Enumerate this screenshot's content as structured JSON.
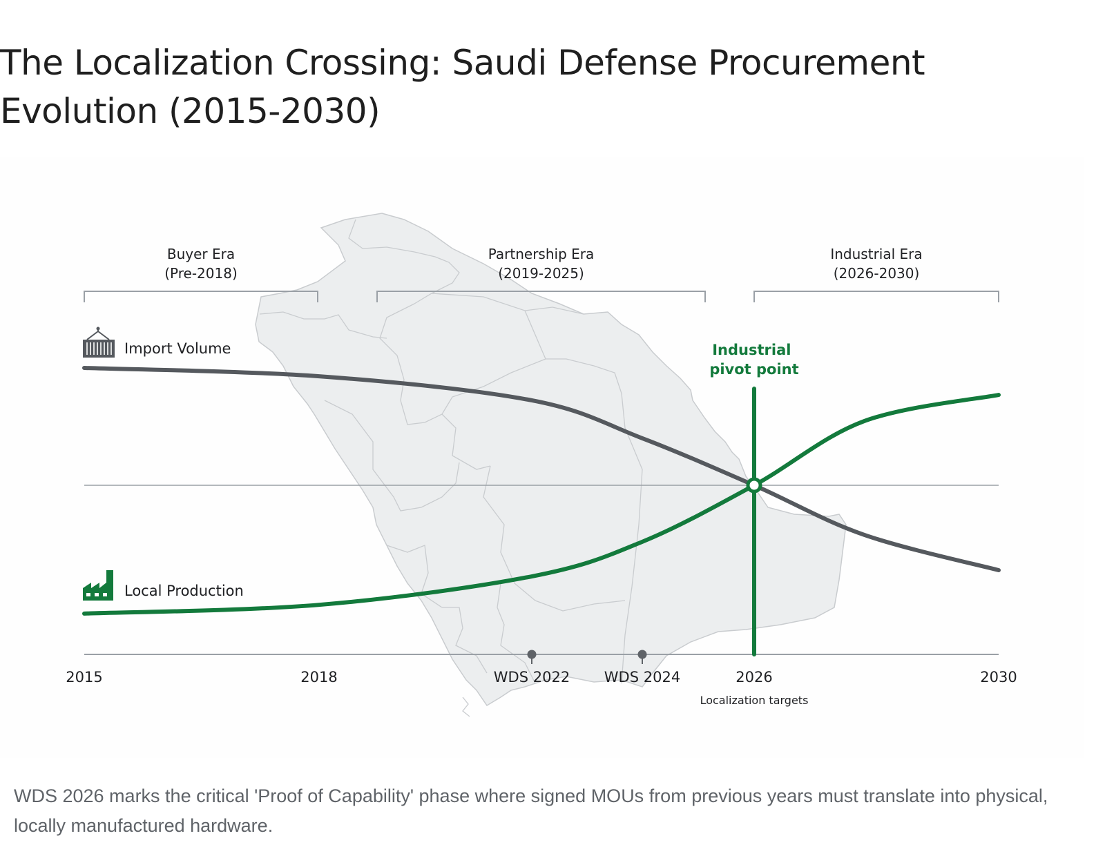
{
  "title": "The Localization Crossing: Saudi Defense Procurement Evolution (2015-2030)",
  "caption": "WDS 2026 marks the critical 'Proof of Capability' phase where signed MOUs from previous years must translate into physical, locally manufactured hardware.",
  "colors": {
    "import": "#55595e",
    "local": "#137a3c",
    "axis": "#9aa0a6",
    "bracket": "#9aa0a6",
    "map_fill": "#eceeef",
    "map_stroke": "#c9cccf",
    "milestone": "#5f6368",
    "text": "#202124"
  },
  "chart_data": {
    "type": "line",
    "title": "The Localization Crossing: Saudi Defense Procurement Evolution (2015-2030)",
    "xlabel": "",
    "ylabel": "",
    "x_ticks": [
      {
        "year": 2015,
        "label": "2015"
      },
      {
        "year": 2018,
        "label": "2018"
      },
      {
        "year": 2022,
        "label": "WDS 2022",
        "milestone": true
      },
      {
        "year": 2024,
        "label": "WDS 2024",
        "milestone": true
      },
      {
        "year": 2026,
        "label": "2026",
        "sublabel": "Localization targets"
      },
      {
        "year": 2030,
        "label": "2030"
      }
    ],
    "xlim": [
      2015,
      2030
    ],
    "ylim": [
      0,
      100
    ],
    "y_unit": "relative index (unlabeled)",
    "grid": false,
    "reference_line": {
      "value": 46.4
    },
    "series": [
      {
        "name": "Import Volume",
        "icon": "shipping-container-icon",
        "color": "#55595e",
        "points": [
          [
            2015,
            78.6
          ],
          [
            2018,
            76.3
          ],
          [
            2022,
            69.7
          ],
          [
            2024,
            59.3
          ],
          [
            2026,
            46.4
          ],
          [
            2027.8,
            32.8
          ],
          [
            2030,
            23.1
          ]
        ]
      },
      {
        "name": "Local Production",
        "icon": "factory-icon",
        "color": "#137a3c",
        "points": [
          [
            2015,
            11.2
          ],
          [
            2018,
            13.6
          ],
          [
            2022,
            21.4
          ],
          [
            2024,
            30.9
          ],
          [
            2026,
            46.4
          ],
          [
            2027.8,
            64.0
          ],
          [
            2030,
            71.2
          ]
        ]
      }
    ],
    "eras": [
      {
        "name": "Buyer Era",
        "range_label": "(Pre-2018)",
        "start": 2015,
        "end": 2018
      },
      {
        "name": "Partnership Era",
        "range_label": "(2019-2025)",
        "start": 2019,
        "end": 2025
      },
      {
        "name": "Industrial Era",
        "range_label": "(2026-2030)",
        "start": 2026,
        "end": 2030
      }
    ],
    "annotations": [
      {
        "text": "Industrial pivot point",
        "lines": [
          "Industrial",
          "pivot point"
        ],
        "x": 2026,
        "y": 46.4,
        "color": "#137a3c"
      }
    ],
    "background": "Saudi Arabia map silhouette with regional borders",
    "legend": "inline-left"
  }
}
